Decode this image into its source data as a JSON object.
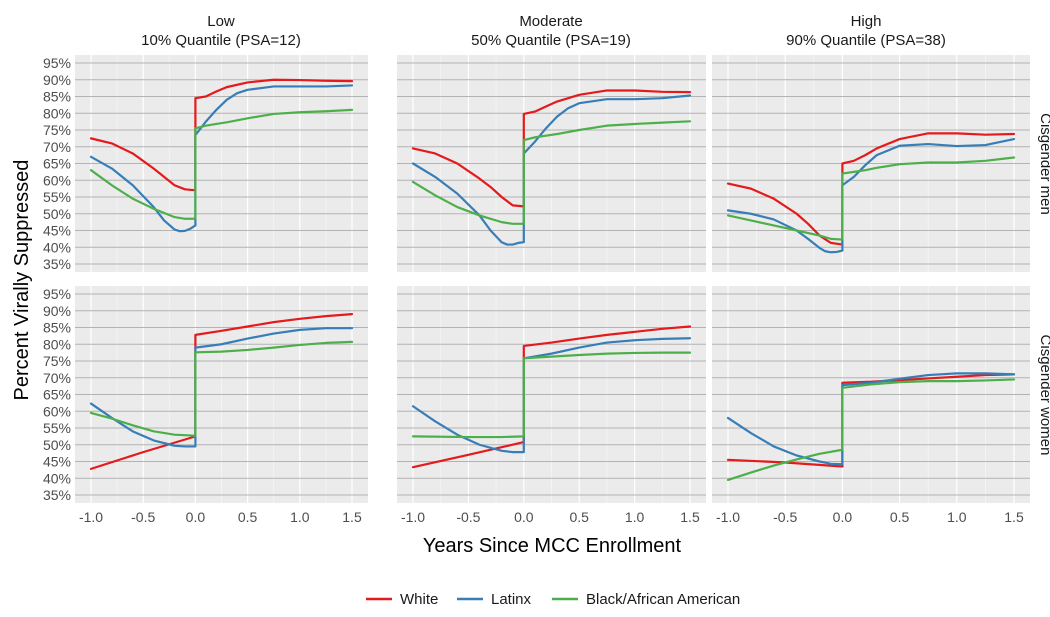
{
  "chart_data": {
    "type": "line",
    "xlabel": "Years Since MCC Enrollment",
    "ylabel": "Percent Virally Suppressed",
    "xlim": [
      -1.0,
      1.5
    ],
    "ylim": [
      35,
      95
    ],
    "x_ticks": [
      -1.0,
      -0.5,
      0.0,
      0.5,
      1.0,
      1.5
    ],
    "x_tick_labels": [
      "-1.0",
      "-0.5",
      "0.0",
      "0.5",
      "1.0",
      "1.5"
    ],
    "y_ticks": [
      35,
      40,
      45,
      50,
      55,
      60,
      65,
      70,
      75,
      80,
      85,
      90,
      95
    ],
    "y_tick_labels": [
      "35%",
      "40%",
      "45%",
      "50%",
      "55%",
      "60%",
      "65%",
      "70%",
      "75%",
      "80%",
      "85%",
      "90%",
      "95%"
    ],
    "columns": [
      {
        "line1": "Low",
        "line2": "10% Quantile (PSA=12)"
      },
      {
        "line1": "Moderate",
        "line2": "50% Quantile (PSA=19)"
      },
      {
        "line1": "High",
        "line2": "90% Quantile (PSA=38)"
      }
    ],
    "rows": [
      "Cisgender men",
      "Cisgender women"
    ],
    "legend": [
      {
        "name": "White",
        "color": "#e41a1c"
      },
      {
        "name": "Latinx",
        "color": "#377eb8"
      },
      {
        "name": "Black/African American",
        "color": "#4daf4a"
      }
    ],
    "panels": [
      {
        "row": 0,
        "col": 0,
        "series": [
          {
            "name": "White",
            "x": [
              -1.0,
              -0.8,
              -0.6,
              -0.4,
              -0.3,
              -0.2,
              -0.1,
              0.0,
              0.0,
              0.1,
              0.2,
              0.3,
              0.5,
              0.75,
              1.0,
              1.25,
              1.5
            ],
            "y": [
              72.5,
              71,
              68,
              63.5,
              61,
              58.5,
              57.3,
              57,
              84.5,
              85,
              86.5,
              87.8,
              89.2,
              90,
              89.9,
              89.7,
              89.6
            ]
          },
          {
            "name": "Latinx",
            "x": [
              -1.0,
              -0.8,
              -0.6,
              -0.4,
              -0.3,
              -0.2,
              -0.15,
              -0.1,
              -0.05,
              0.0,
              0.0,
              0.1,
              0.2,
              0.3,
              0.4,
              0.5,
              0.75,
              1.0,
              1.25,
              1.5
            ],
            "y": [
              67,
              63.5,
              58.5,
              52,
              48,
              45.3,
              44.8,
              44.9,
              45.5,
              46.5,
              73.5,
              77.5,
              81,
              84,
              86,
              87,
              88,
              88,
              88,
              88.3
            ]
          },
          {
            "name": "Black/African American",
            "x": [
              -1.0,
              -0.8,
              -0.6,
              -0.4,
              -0.2,
              -0.1,
              0.0,
              0.0,
              0.1,
              0.2,
              0.3,
              0.5,
              0.75,
              1.0,
              1.25,
              1.5
            ],
            "y": [
              63,
              58.5,
              54.5,
              51.5,
              49,
              48.5,
              48.5,
              75.5,
              76.3,
              76.8,
              77.3,
              78.5,
              79.8,
              80.3,
              80.6,
              81
            ]
          }
        ]
      },
      {
        "row": 0,
        "col": 1,
        "series": [
          {
            "name": "White",
            "x": [
              -1.0,
              -0.8,
              -0.6,
              -0.4,
              -0.3,
              -0.2,
              -0.1,
              0.0,
              0.0,
              0.1,
              0.2,
              0.3,
              0.5,
              0.75,
              1.0,
              1.25,
              1.5
            ],
            "y": [
              69.5,
              68,
              65,
              60.5,
              58,
              55,
              52.5,
              52.2,
              79.8,
              80.5,
              82,
              83.5,
              85.5,
              86.8,
              86.8,
              86.4,
              86.3
            ]
          },
          {
            "name": "Latinx",
            "x": [
              -1.0,
              -0.8,
              -0.6,
              -0.4,
              -0.3,
              -0.2,
              -0.15,
              -0.1,
              -0.05,
              0.0,
              0.0,
              0.1,
              0.2,
              0.3,
              0.4,
              0.5,
              0.75,
              1.0,
              1.25,
              1.5
            ],
            "y": [
              65,
              61,
              56,
              49.5,
              45,
              41.5,
              40.8,
              40.8,
              41.3,
              41.5,
              68,
              71.5,
              75.5,
              79,
              81.5,
              83,
              84.2,
              84.2,
              84.5,
              85.3
            ]
          },
          {
            "name": "Black/African American",
            "x": [
              -1.0,
              -0.8,
              -0.6,
              -0.4,
              -0.2,
              -0.1,
              0.0,
              0.0,
              0.1,
              0.2,
              0.3,
              0.5,
              0.75,
              1.0,
              1.25,
              1.5
            ],
            "y": [
              59.5,
              55.5,
              52,
              49.5,
              47.5,
              47,
              47,
              72,
              72.8,
              73.3,
              73.8,
              75,
              76.3,
              76.8,
              77.2,
              77.6
            ]
          }
        ]
      },
      {
        "row": 0,
        "col": 2,
        "series": [
          {
            "name": "White",
            "x": [
              -1.0,
              -0.8,
              -0.6,
              -0.4,
              -0.3,
              -0.2,
              -0.1,
              0.0,
              0.0,
              0.1,
              0.2,
              0.3,
              0.5,
              0.75,
              1.0,
              1.25,
              1.5
            ],
            "y": [
              59,
              57.5,
              54.5,
              50,
              47,
              43.5,
              41.3,
              40.8,
              65,
              65.8,
              67.5,
              69.5,
              72.3,
              74,
              74,
              73.6,
              73.8
            ]
          },
          {
            "name": "Latinx",
            "x": [
              -1.0,
              -0.8,
              -0.6,
              -0.4,
              -0.3,
              -0.2,
              -0.15,
              -0.1,
              -0.05,
              0.0,
              0.0,
              0.1,
              0.2,
              0.3,
              0.5,
              0.75,
              1.0,
              1.25,
              1.5
            ],
            "y": [
              51,
              50,
              48.3,
              45,
              42.5,
              39.8,
              38.8,
              38.5,
              38.6,
              39,
              58.5,
              61,
              64.5,
              67.5,
              70.3,
              70.8,
              70.2,
              70.5,
              72.3
            ]
          },
          {
            "name": "Black/African American",
            "x": [
              -1.0,
              -0.8,
              -0.6,
              -0.4,
              -0.2,
              -0.1,
              0.0,
              0.0,
              0.1,
              0.2,
              0.3,
              0.5,
              0.75,
              1.0,
              1.25,
              1.5
            ],
            "y": [
              49.5,
              48,
              46.5,
              45,
              43.5,
              42.5,
              42.3,
              62,
              62.5,
              63,
              63.7,
              64.8,
              65.3,
              65.3,
              65.8,
              66.8
            ]
          }
        ]
      },
      {
        "row": 1,
        "col": 0,
        "series": [
          {
            "name": "White",
            "x": [
              -1.0,
              -0.5,
              0.0,
              0.0,
              0.25,
              0.5,
              0.75,
              1.0,
              1.25,
              1.5
            ],
            "y": [
              42.8,
              47.8,
              52.5,
              82.8,
              84,
              85.3,
              86.6,
              87.6,
              88.4,
              89
            ]
          },
          {
            "name": "Latinx",
            "x": [
              -1.0,
              -0.8,
              -0.6,
              -0.4,
              -0.2,
              -0.1,
              0.0,
              0.0,
              0.25,
              0.5,
              0.75,
              1.0,
              1.25,
              1.5
            ],
            "y": [
              62.3,
              58,
              54,
              51.3,
              49.7,
              49.5,
              49.5,
              79,
              80,
              81.7,
              83.2,
              84.3,
              84.8,
              84.8
            ]
          },
          {
            "name": "Black/African American",
            "x": [
              -1.0,
              -0.8,
              -0.6,
              -0.4,
              -0.2,
              0.0,
              0.0,
              0.25,
              0.5,
              0.75,
              1.0,
              1.25,
              1.5
            ],
            "y": [
              59.5,
              57.8,
              55.8,
              54,
              53,
              52.7,
              77.6,
              77.8,
              78.3,
              79,
              79.8,
              80.4,
              80.7
            ]
          }
        ]
      },
      {
        "row": 1,
        "col": 1,
        "series": [
          {
            "name": "White",
            "x": [
              -1.0,
              -0.5,
              0.0,
              0.0,
              0.25,
              0.5,
              0.75,
              1.0,
              1.25,
              1.5
            ],
            "y": [
              43.3,
              47,
              50.8,
              79.5,
              80.5,
              81.7,
              82.8,
              83.7,
              84.6,
              85.3
            ]
          },
          {
            "name": "Latinx",
            "x": [
              -1.0,
              -0.8,
              -0.6,
              -0.4,
              -0.2,
              -0.1,
              0.0,
              0.0,
              0.25,
              0.5,
              0.75,
              1.0,
              1.25,
              1.5
            ],
            "y": [
              61.5,
              57,
              53,
              50,
              48.2,
              47.8,
              47.8,
              75.8,
              77.2,
              79,
              80.5,
              81.2,
              81.6,
              81.8
            ]
          },
          {
            "name": "Black/African American",
            "x": [
              -1.0,
              -0.5,
              -0.2,
              0.0,
              0.0,
              0.25,
              0.5,
              0.75,
              1.0,
              1.25,
              1.5
            ],
            "y": [
              52.5,
              52.3,
              52.3,
              52.5,
              75.8,
              76.3,
              76.8,
              77.2,
              77.4,
              77.5,
              77.5
            ]
          }
        ]
      },
      {
        "row": 1,
        "col": 2,
        "series": [
          {
            "name": "White",
            "x": [
              -1.0,
              -0.5,
              0.0,
              0.0,
              0.25,
              0.5,
              0.75,
              1.0,
              1.25,
              1.5
            ],
            "y": [
              45.5,
              44.7,
              43.5,
              68.5,
              68.8,
              69.3,
              69.8,
              70.3,
              70.8,
              71
            ]
          },
          {
            "name": "Latinx",
            "x": [
              -1.0,
              -0.8,
              -0.6,
              -0.4,
              -0.2,
              -0.1,
              0.0,
              0.0,
              0.25,
              0.5,
              0.75,
              1.0,
              1.25,
              1.5
            ],
            "y": [
              58,
              53.5,
              49.5,
              46.8,
              45,
              44.3,
              44.2,
              67.8,
              68.5,
              69.7,
              70.8,
              71.3,
              71.3,
              71
            ]
          },
          {
            "name": "Black/African American",
            "x": [
              -1.0,
              -0.8,
              -0.6,
              -0.4,
              -0.2,
              0.0,
              0.0,
              0.25,
              0.5,
              0.75,
              1.0,
              1.25,
              1.5
            ],
            "y": [
              39.5,
              41.7,
              43.8,
              45.6,
              47.3,
              48.5,
              67,
              68,
              68.7,
              69,
              69,
              69.2,
              69.5
            ]
          }
        ]
      }
    ]
  }
}
